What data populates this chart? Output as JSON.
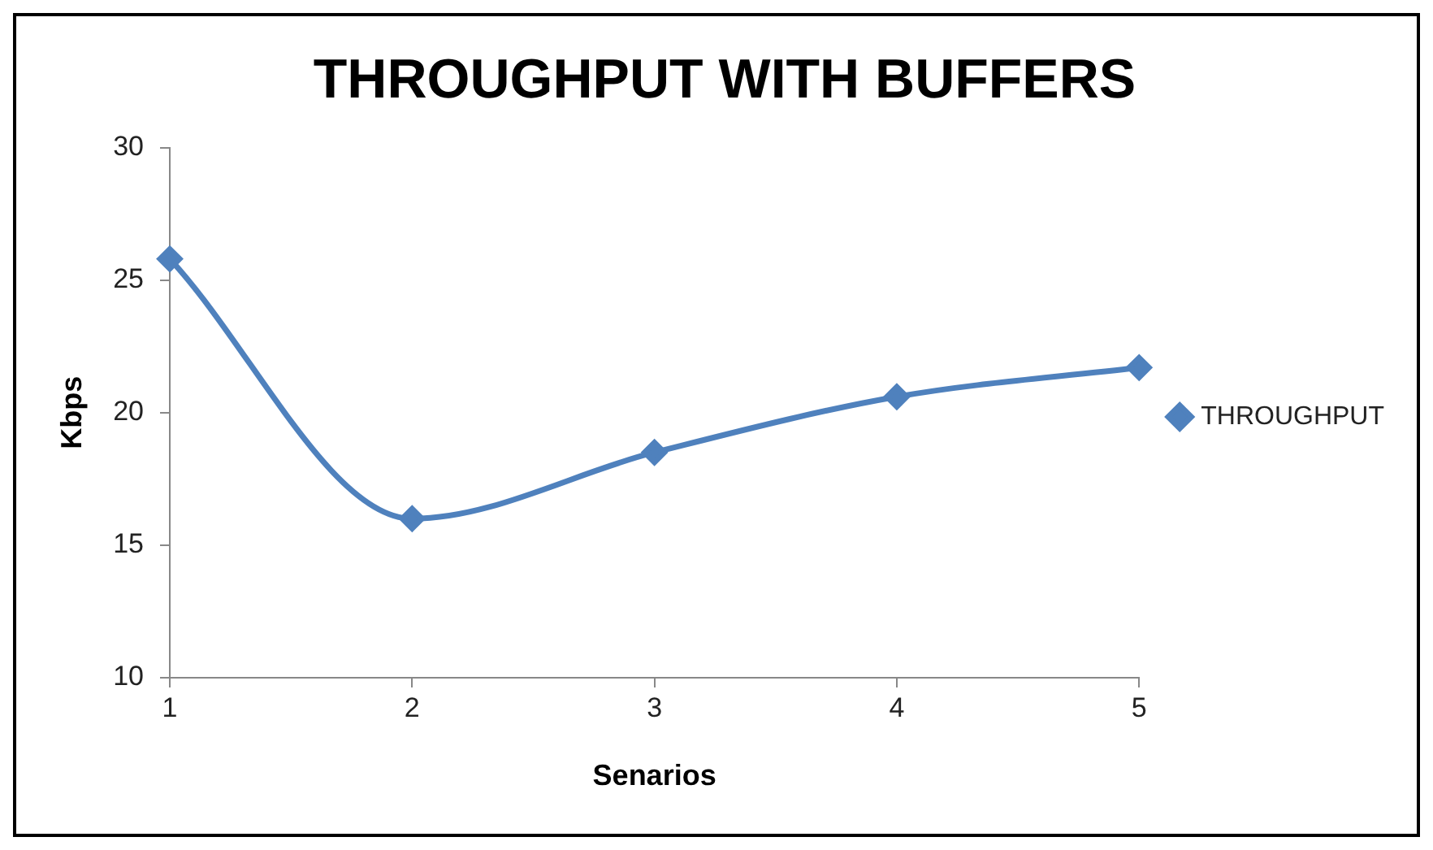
{
  "chart_data": {
    "type": "line",
    "title": "THROUGHPUT WITH BUFFERS",
    "xlabel": "Senarios",
    "ylabel": "Kbps",
    "categories": [
      "1",
      "2",
      "3",
      "4",
      "5"
    ],
    "series": [
      {
        "name": "THROUGHPUT",
        "color": "#4f81bd",
        "values": [
          25.8,
          16.0,
          18.5,
          20.6,
          21.7
        ]
      }
    ],
    "ylim": [
      10,
      30
    ],
    "yticks": [
      10,
      15,
      20,
      25,
      30
    ],
    "grid": false,
    "legend": "right",
    "marker": "diamond",
    "line_style": "solid"
  }
}
